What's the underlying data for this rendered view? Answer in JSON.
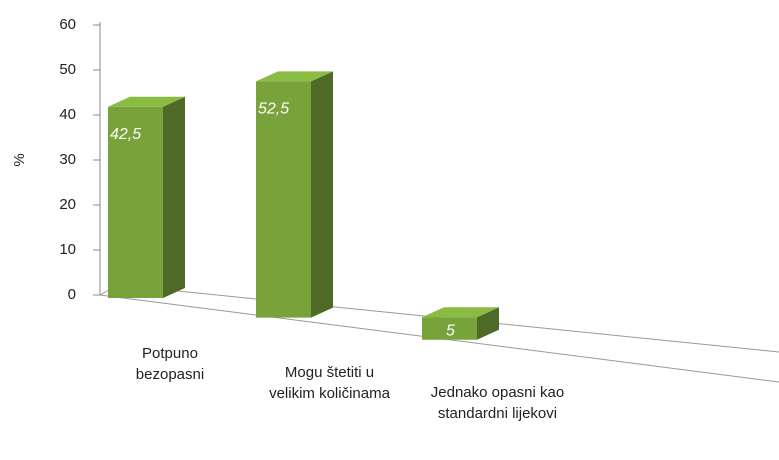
{
  "chart_data": {
    "type": "bar3d",
    "ylabel": "%",
    "categories": [
      "Potpuno bezopasni",
      "Mogu štetiti u velikim količinama",
      "Jednako opasni kao standardni lijekovi"
    ],
    "values": [
      42.5,
      52.5,
      5
    ],
    "value_labels": [
      "42,5",
      "52,5",
      "5"
    ],
    "color": "#78a33a",
    "ylim": [
      0,
      60
    ],
    "yticks": [
      0,
      10,
      20,
      30,
      40,
      50,
      60
    ]
  }
}
